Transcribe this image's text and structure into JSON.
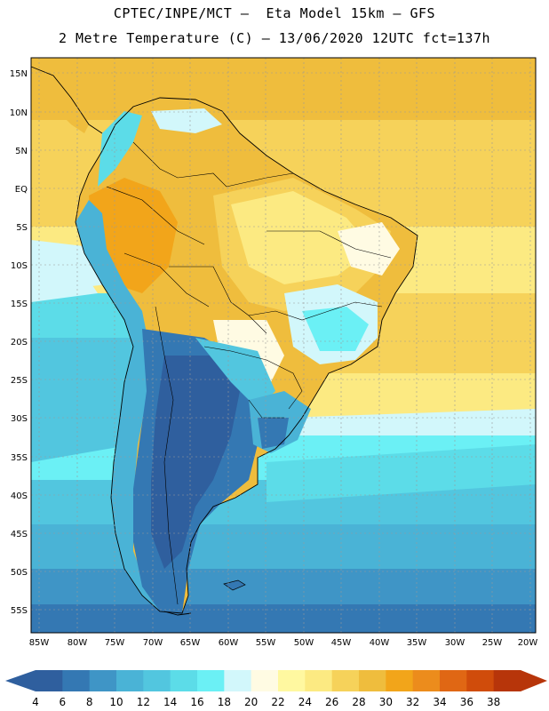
{
  "title_line1": "CPTEC/INPE/MCT –  Eta Model 15km – GFS",
  "title_line2": "2 Metre Temperature (C) – 13/06/2020 12UTC fct=137h",
  "lat_labels": [
    "15N",
    "10N",
    "5N",
    "EQ",
    "5S",
    "10S",
    "15S",
    "20S",
    "25S",
    "30S",
    "35S",
    "40S",
    "45S",
    "50S",
    "55S"
  ],
  "lon_labels": [
    "85W",
    "80W",
    "75W",
    "70W",
    "65W",
    "60W",
    "55W",
    "50W",
    "45W",
    "40W",
    "35W",
    "30W",
    "25W",
    "20W"
  ],
  "colorbar": {
    "labels": [
      "4",
      "6",
      "8",
      "10",
      "12",
      "14",
      "16",
      "18",
      "20",
      "22",
      "24",
      "26",
      "28",
      "30",
      "32",
      "34",
      "36",
      "38"
    ],
    "colors": [
      "#2f5f9e",
      "#3478b3",
      "#3f95c6",
      "#4ab3d6",
      "#52c6df",
      "#5cdce8",
      "#6bf0f5",
      "#d2f7fb",
      "#fffbe3",
      "#fff8a0",
      "#fcea82",
      "#f6d25a",
      "#efbd3d",
      "#f2a51a",
      "#ec8c1c",
      "#e06714",
      "#d04c0b",
      "#b7350a"
    ]
  }
}
